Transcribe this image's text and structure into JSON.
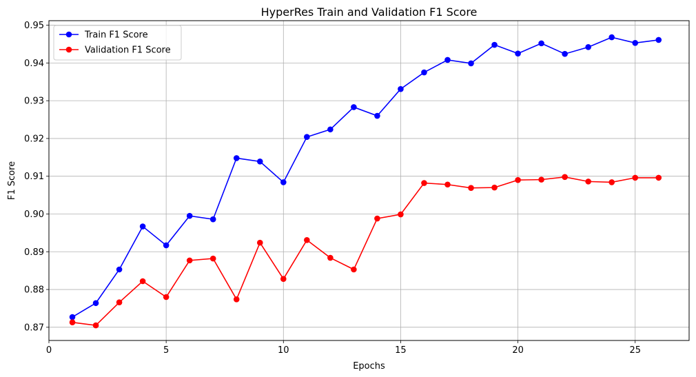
{
  "chart_data": {
    "type": "line",
    "title": "HyperRes Train and Validation F1 Score",
    "xlabel": "Epochs",
    "ylabel": "F1 Score",
    "xlim": [
      0,
      27.3
    ],
    "ylim": [
      0.8665,
      0.9512
    ],
    "xticks": [
      0,
      5,
      10,
      15,
      20,
      25
    ],
    "xtick_labels": [
      "0",
      "5",
      "10",
      "15",
      "20",
      "25"
    ],
    "yticks": [
      0.87,
      0.88,
      0.89,
      0.9,
      0.91,
      0.92,
      0.93,
      0.94,
      0.95
    ],
    "ytick_labels": [
      "0.87",
      "0.88",
      "0.89",
      "0.90",
      "0.91",
      "0.92",
      "0.93",
      "0.94",
      "0.95"
    ],
    "grid": true,
    "legend_position": "top-left",
    "x": [
      1,
      2,
      3,
      4,
      5,
      6,
      7,
      8,
      9,
      10,
      11,
      12,
      13,
      14,
      15,
      16,
      17,
      18,
      19,
      20,
      21,
      22,
      23,
      24,
      25,
      26
    ],
    "series": [
      {
        "name": "Train F1 Score",
        "color": "#0000ff",
        "values": [
          0.8727,
          0.8764,
          0.8853,
          0.8967,
          0.8917,
          0.8995,
          0.8986,
          0.9148,
          0.9139,
          0.9084,
          0.9204,
          0.9224,
          0.9283,
          0.926,
          0.9331,
          0.9375,
          0.9408,
          0.9399,
          0.9448,
          0.9425,
          0.9452,
          0.9424,
          0.9442,
          0.9468,
          0.9453,
          0.9461
        ]
      },
      {
        "name": "Validation F1 Score",
        "color": "#ff0000",
        "values": [
          0.8713,
          0.8705,
          0.8766,
          0.8822,
          0.878,
          0.8877,
          0.8882,
          0.8774,
          0.8924,
          0.8828,
          0.8931,
          0.8884,
          0.8853,
          0.8988,
          0.8999,
          0.9082,
          0.9078,
          0.9069,
          0.907,
          0.909,
          0.9091,
          0.9098,
          0.9086,
          0.9084,
          0.9096,
          0.9096
        ]
      }
    ]
  }
}
